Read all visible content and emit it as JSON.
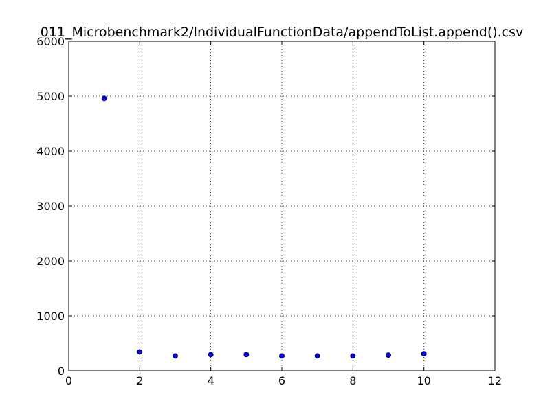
{
  "chart_data": {
    "type": "scatter",
    "title": "011_Microbenchmark2/IndividualFunctionData/appendToList.append().csv",
    "xlabel": "",
    "ylabel": "",
    "xlim": [
      0,
      12
    ],
    "ylim": [
      0,
      6000
    ],
    "xticks": [
      0,
      2,
      4,
      6,
      8,
      10,
      12
    ],
    "yticks": [
      0,
      1000,
      2000,
      3000,
      4000,
      5000,
      6000
    ],
    "grid": true,
    "grid_style": "dotted",
    "legend": "none",
    "series": [
      {
        "color": "#0000ff",
        "points": [
          {
            "x": 1,
            "y": 4960
          },
          {
            "x": 2,
            "y": 345
          },
          {
            "x": 3,
            "y": 270
          },
          {
            "x": 4,
            "y": 295
          },
          {
            "x": 5,
            "y": 295
          },
          {
            "x": 6,
            "y": 270
          },
          {
            "x": 7,
            "y": 270
          },
          {
            "x": 8,
            "y": 270
          },
          {
            "x": 9,
            "y": 285
          },
          {
            "x": 10,
            "y": 310
          }
        ]
      }
    ]
  }
}
